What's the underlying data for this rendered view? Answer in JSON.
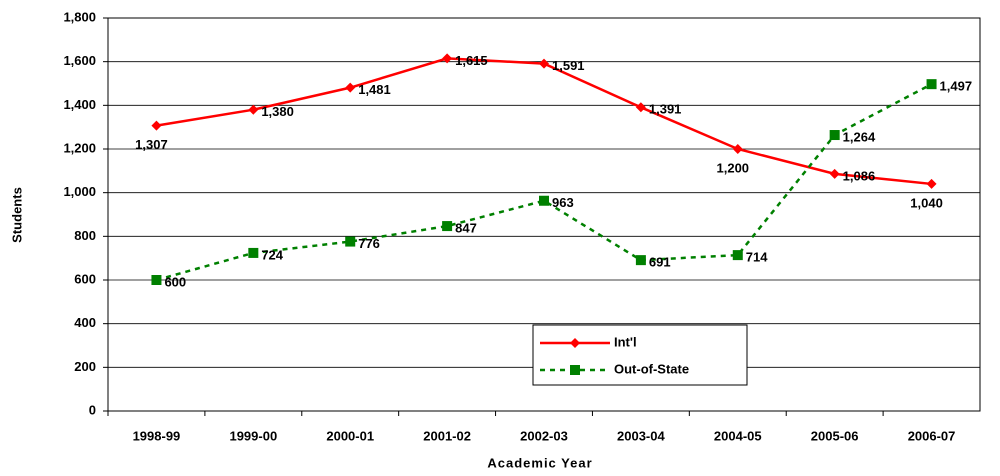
{
  "chart_data": {
    "type": "line",
    "x_label": "Academic Year",
    "y_label": "Students",
    "categories": [
      "1998-99",
      "1999-00",
      "2000-01",
      "2001-02",
      "2002-03",
      "2003-04",
      "2004-05",
      "2005-06",
      "2006-07"
    ],
    "series": [
      {
        "name": "Int'l",
        "color": "#ff0000",
        "marker": "diamond",
        "dashed": false,
        "values": [
          1307,
          1380,
          1481,
          1615,
          1591,
          1391,
          1200,
          1086,
          1040
        ],
        "value_labels": [
          "1,307",
          "1,380",
          "1,481",
          "1,615",
          "1,591",
          "1,391",
          "1,200",
          "1,086",
          "1,040"
        ]
      },
      {
        "name": "Out-of-State",
        "color": "#008000",
        "marker": "square",
        "dashed": true,
        "values": [
          600,
          724,
          776,
          847,
          963,
          691,
          714,
          1264,
          1497
        ],
        "value_labels": [
          "600",
          "724",
          "776",
          "847",
          "963",
          "691",
          "714",
          "1,264",
          "1,497"
        ]
      }
    ],
    "ylim": [
      0,
      1800
    ],
    "yticks": [
      0,
      200,
      400,
      600,
      800,
      {
        "value": 1000,
        "label": "1,000"
      },
      {
        "value": 1200,
        "label": "1,200"
      },
      {
        "value": 1400,
        "label": "1,400"
      },
      {
        "value": 1600,
        "label": "1,600"
      },
      {
        "value": 1800,
        "label": "1,800"
      }
    ],
    "grid": true
  }
}
